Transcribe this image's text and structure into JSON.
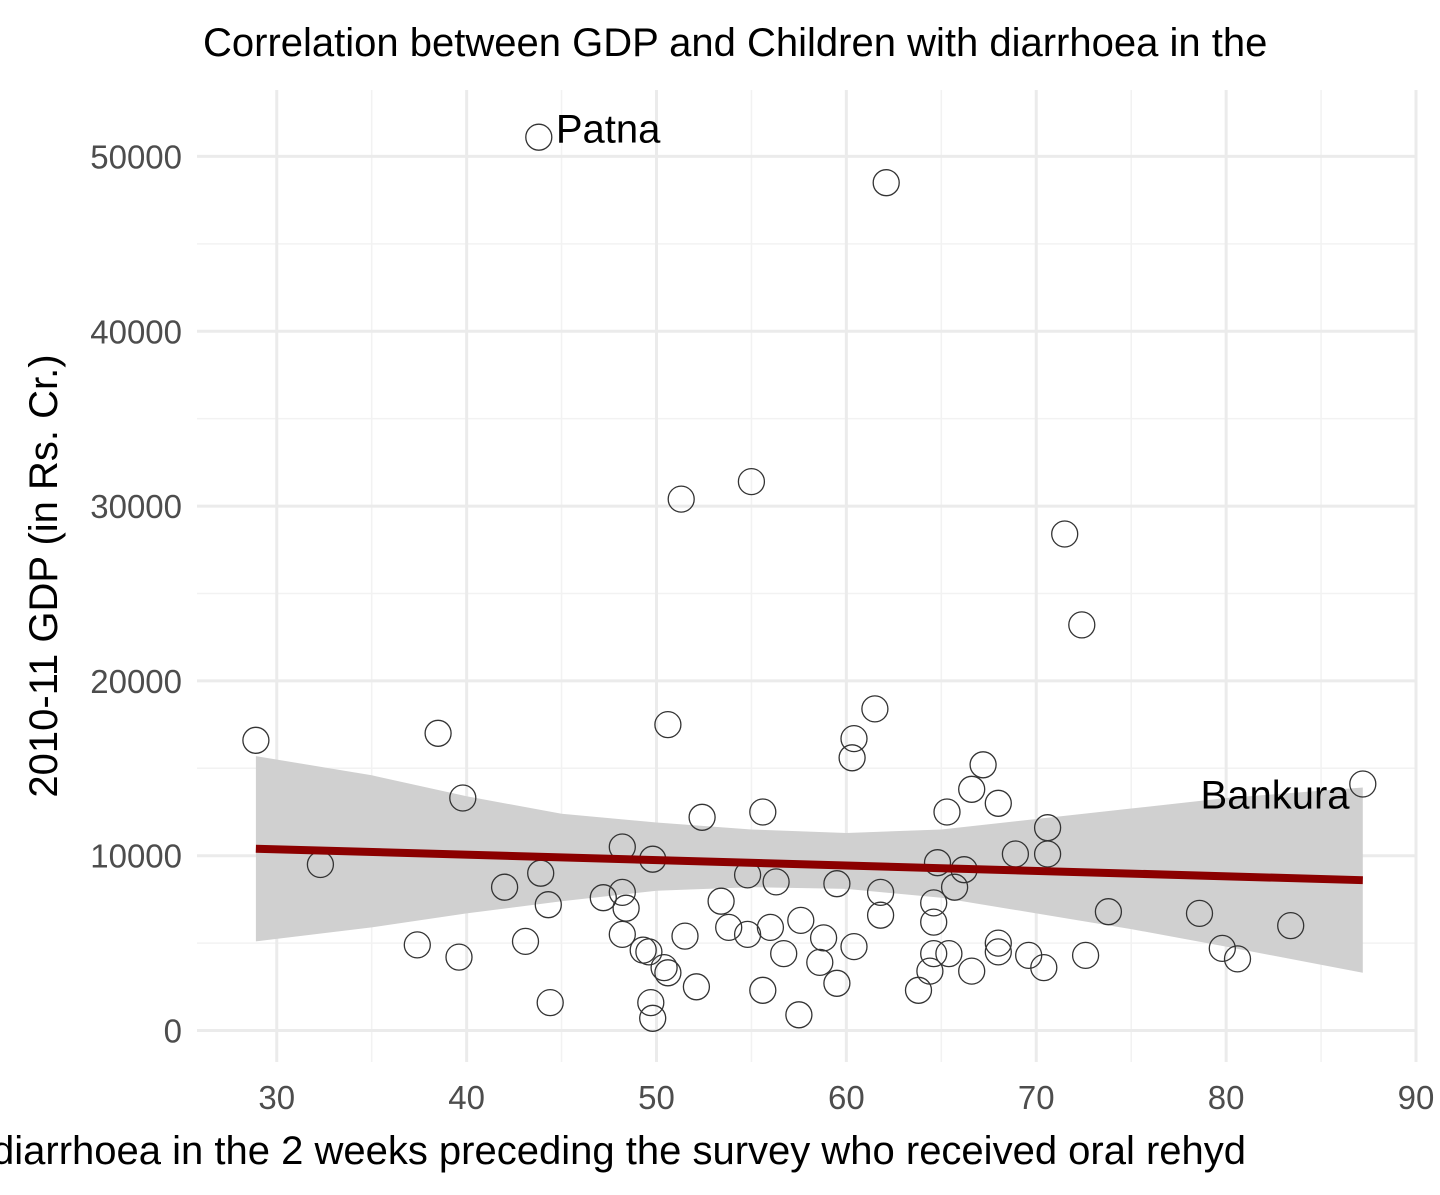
{
  "chart_data": {
    "type": "scatter",
    "title": "Correlation between GDP and Children with diarrhoea in the",
    "xlabel": "diarrhoea in the 2 weeks preceding the survey who received oral rehyd",
    "ylabel": "2010-11 GDP (in Rs. Cr.)",
    "xlim": [
      25.8,
      90
    ],
    "ylim": [
      -1800,
      53800
    ],
    "x_ticks": [
      "30",
      "40",
      "50",
      "60",
      "70",
      "80",
      "90"
    ],
    "y_ticks": [
      "0",
      "10000",
      "20000",
      "30000",
      "40000",
      "50000"
    ],
    "x_tick_values": [
      30,
      40,
      50,
      60,
      70,
      80,
      90
    ],
    "y_tick_values": [
      0,
      10000,
      20000,
      30000,
      40000,
      50000
    ],
    "grid": true,
    "legend": "none",
    "colors": {
      "points": "#333333",
      "trend": "#8b0000",
      "ribbon": "#d0d0d0",
      "grid": "#ebebeb"
    },
    "points": [
      [
        43.8,
        51100
      ],
      [
        62.1,
        48500
      ],
      [
        55.0,
        31400
      ],
      [
        51.3,
        30400
      ],
      [
        71.5,
        28400
      ],
      [
        72.4,
        23200
      ],
      [
        61.5,
        18400
      ],
      [
        50.6,
        17500
      ],
      [
        38.5,
        17000
      ],
      [
        28.9,
        16600
      ],
      [
        60.4,
        16700
      ],
      [
        60.3,
        15600
      ],
      [
        67.2,
        15200
      ],
      [
        87.2,
        14100
      ],
      [
        66.6,
        13800
      ],
      [
        39.8,
        13300
      ],
      [
        68.0,
        13000
      ],
      [
        65.3,
        12500
      ],
      [
        55.6,
        12500
      ],
      [
        52.4,
        12200
      ],
      [
        70.6,
        11600
      ],
      [
        48.2,
        10500
      ],
      [
        70.6,
        10100
      ],
      [
        68.9,
        10100
      ],
      [
        49.8,
        9800
      ],
      [
        64.8,
        9600
      ],
      [
        32.3,
        9500
      ],
      [
        66.2,
        9200
      ],
      [
        43.9,
        9000
      ],
      [
        54.8,
        8900
      ],
      [
        56.3,
        8500
      ],
      [
        59.5,
        8400
      ],
      [
        65.7,
        8200
      ],
      [
        42.0,
        8200
      ],
      [
        48.2,
        7900
      ],
      [
        61.8,
        7900
      ],
      [
        47.2,
        7600
      ],
      [
        53.4,
        7400
      ],
      [
        64.6,
        7300
      ],
      [
        44.3,
        7200
      ],
      [
        48.4,
        7000
      ],
      [
        73.8,
        6800
      ],
      [
        78.6,
        6700
      ],
      [
        61.8,
        6600
      ],
      [
        57.6,
        6300
      ],
      [
        64.6,
        6200
      ],
      [
        83.4,
        6000
      ],
      [
        53.8,
        5900
      ],
      [
        56.0,
        5900
      ],
      [
        48.2,
        5500
      ],
      [
        54.8,
        5500
      ],
      [
        51.5,
        5400
      ],
      [
        58.8,
        5300
      ],
      [
        43.1,
        5100
      ],
      [
        37.4,
        4900
      ],
      [
        68.0,
        5000
      ],
      [
        60.4,
        4800
      ],
      [
        79.8,
        4700
      ],
      [
        49.3,
        4600
      ],
      [
        49.6,
        4500
      ],
      [
        68.0,
        4500
      ],
      [
        56.7,
        4400
      ],
      [
        65.4,
        4400
      ],
      [
        64.6,
        4400
      ],
      [
        72.6,
        4300
      ],
      [
        69.6,
        4300
      ],
      [
        39.6,
        4200
      ],
      [
        80.6,
        4100
      ],
      [
        58.6,
        3900
      ],
      [
        50.4,
        3600
      ],
      [
        50.6,
        3300
      ],
      [
        70.4,
        3600
      ],
      [
        66.6,
        3400
      ],
      [
        64.4,
        3400
      ],
      [
        59.5,
        2700
      ],
      [
        52.1,
        2500
      ],
      [
        55.6,
        2300
      ],
      [
        63.8,
        2300
      ],
      [
        44.4,
        1600
      ],
      [
        49.7,
        1600
      ],
      [
        57.5,
        900
      ],
      [
        49.8,
        700
      ]
    ],
    "trend_line": {
      "x": [
        28.9,
        87.2
      ],
      "y": [
        10400,
        8600
      ]
    },
    "confidence_band": {
      "x": [
        28.9,
        35,
        40,
        45,
        50,
        55,
        60,
        65,
        70,
        75,
        80,
        87.2
      ],
      "lower": [
        5100,
        5900,
        6700,
        7400,
        8000,
        8200,
        8100,
        7600,
        6700,
        5800,
        4800,
        3300
      ],
      "upper": [
        15700,
        14600,
        13400,
        12400,
        11900,
        11500,
        11300,
        11500,
        12100,
        12700,
        13300,
        13900
      ]
    },
    "annotations": [
      {
        "text": "Patna",
        "x": 44.7,
        "y": 51600
      },
      {
        "text": "Bankura",
        "x": 86.5,
        "y": 13500
      }
    ]
  }
}
